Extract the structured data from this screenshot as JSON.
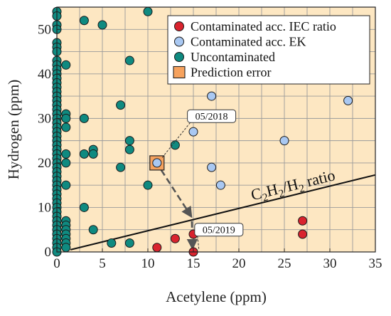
{
  "chart_data": {
    "type": "scatter",
    "xlabel": "Acetylene (ppm)",
    "ylabel": "Hydrogen (ppm)",
    "xlim": [
      0,
      35
    ],
    "ylim": [
      0,
      55
    ],
    "xticks": [
      0,
      5,
      10,
      15,
      20,
      25,
      30,
      35
    ],
    "yticks": [
      0,
      10,
      20,
      30,
      40,
      50
    ],
    "grid": true,
    "background": "#fde7c2",
    "legend_position": "top-right",
    "series": [
      {
        "name": "Contaminated acc. IEC ratio",
        "color": "#d9232e",
        "points": [
          [
            11,
            1
          ],
          [
            13,
            3
          ],
          [
            15,
            4
          ],
          [
            15,
            0
          ],
          [
            27,
            7
          ],
          [
            27,
            4
          ]
        ]
      },
      {
        "name": "Contaminated acc. EK",
        "color": "#a9c8f2",
        "points": [
          [
            11,
            20
          ],
          [
            15,
            27
          ],
          [
            17,
            35
          ],
          [
            17,
            19
          ],
          [
            18,
            15
          ],
          [
            25,
            25
          ],
          [
            32,
            34
          ]
        ]
      },
      {
        "name": "Uncontaminated",
        "color": "#0f8a80",
        "points": [
          [
            0,
            54
          ],
          [
            0,
            53
          ],
          [
            0,
            51
          ],
          [
            0,
            50
          ],
          [
            0,
            47
          ],
          [
            0,
            46
          ],
          [
            0,
            45
          ],
          [
            0,
            43
          ],
          [
            0,
            42
          ],
          [
            0,
            41
          ],
          [
            0,
            40
          ],
          [
            0,
            39
          ],
          [
            0,
            38
          ],
          [
            0,
            37
          ],
          [
            0,
            36
          ],
          [
            0,
            35
          ],
          [
            0,
            34
          ],
          [
            0,
            33
          ],
          [
            0,
            32
          ],
          [
            0,
            31
          ],
          [
            0,
            30
          ],
          [
            0,
            29
          ],
          [
            0,
            28
          ],
          [
            0,
            27
          ],
          [
            0,
            26
          ],
          [
            0,
            25
          ],
          [
            0,
            24
          ],
          [
            0,
            23
          ],
          [
            0,
            22
          ],
          [
            0,
            21
          ],
          [
            0,
            20
          ],
          [
            0,
            19
          ],
          [
            0,
            18
          ],
          [
            0,
            17
          ],
          [
            0,
            16
          ],
          [
            0,
            15
          ],
          [
            0,
            14
          ],
          [
            0,
            13
          ],
          [
            0,
            12
          ],
          [
            0,
            11
          ],
          [
            0,
            10
          ],
          [
            0,
            9
          ],
          [
            0,
            8
          ],
          [
            0,
            7
          ],
          [
            0,
            6
          ],
          [
            0,
            5
          ],
          [
            0,
            4
          ],
          [
            0,
            3
          ],
          [
            0,
            2
          ],
          [
            0,
            1
          ],
          [
            0,
            0
          ],
          [
            1,
            42
          ],
          [
            1,
            31
          ],
          [
            1,
            30
          ],
          [
            1,
            28
          ],
          [
            1,
            22
          ],
          [
            1,
            20
          ],
          [
            1,
            15
          ],
          [
            1,
            7
          ],
          [
            1,
            6
          ],
          [
            1,
            5
          ],
          [
            1,
            4
          ],
          [
            1,
            3
          ],
          [
            1,
            2
          ],
          [
            1,
            1
          ],
          [
            3,
            52
          ],
          [
            3,
            30
          ],
          [
            3,
            22
          ],
          [
            3,
            10
          ],
          [
            4,
            23
          ],
          [
            4,
            22
          ],
          [
            4,
            5
          ],
          [
            5,
            51
          ],
          [
            6,
            2
          ],
          [
            7,
            33
          ],
          [
            7,
            19
          ],
          [
            8,
            43
          ],
          [
            8,
            25
          ],
          [
            8,
            23
          ],
          [
            8,
            2
          ],
          [
            10,
            54
          ],
          [
            10,
            15
          ],
          [
            13,
            24
          ]
        ]
      }
    ],
    "legend": [
      {
        "label": "Contaminated acc. IEC ratio",
        "shape": "circle",
        "color": "#d9232e"
      },
      {
        "label": "Contaminated acc. EK",
        "shape": "circle",
        "color": "#a9c8f2"
      },
      {
        "label": "Uncontaminated",
        "shape": "circle",
        "color": "#0f8a80"
      },
      {
        "label": "Prediction error",
        "shape": "square",
        "color": "#f6a25e"
      }
    ],
    "prediction_error": {
      "x": 11,
      "y": 20,
      "color": "#f6a25e"
    },
    "ratio_line": {
      "label": "C2H2/H2 ratio",
      "label_main": "C",
      "label_sub1": "2",
      "label_mid": "H",
      "label_sub2": "2",
      "label_tail": "/H",
      "label_sub3": "2",
      "label_end": " ratio",
      "from": [
        1.5,
        0.5
      ],
      "to": [
        35,
        17.3
      ],
      "label_at": [
        21.5,
        11.6
      ]
    },
    "trajectory": {
      "from": [
        11,
        20
      ],
      "via": [
        14.6,
        8.5
      ],
      "to": [
        14.9,
        0.5
      ]
    },
    "annotations": [
      {
        "text": "05/2018",
        "x": 17,
        "y": 30.5,
        "target": [
          11.5,
          21
        ]
      },
      {
        "text": "05/2019",
        "x": 17.8,
        "y": 5,
        "target": [
          15.6,
          0.7
        ]
      }
    ]
  }
}
